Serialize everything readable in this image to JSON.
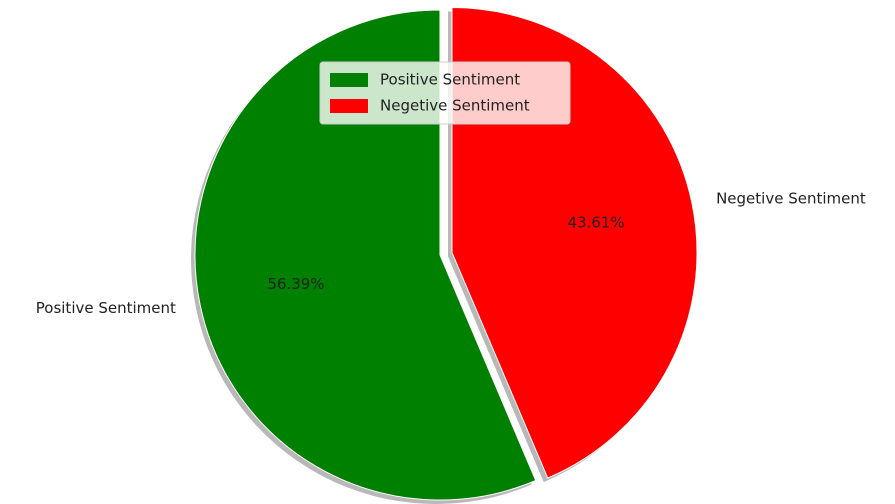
{
  "chart_data": {
    "type": "pie",
    "categories": [
      "Positive Sentiment",
      "Negetive Sentiment"
    ],
    "values": [
      56.39,
      43.61
    ],
    "value_labels": [
      "56.39%",
      "43.61%"
    ],
    "colors": [
      "#008000",
      "#ff0000"
    ],
    "explode": [
      0,
      0.05
    ],
    "start_angle": 90,
    "shadow": true,
    "legend": "upper center"
  }
}
